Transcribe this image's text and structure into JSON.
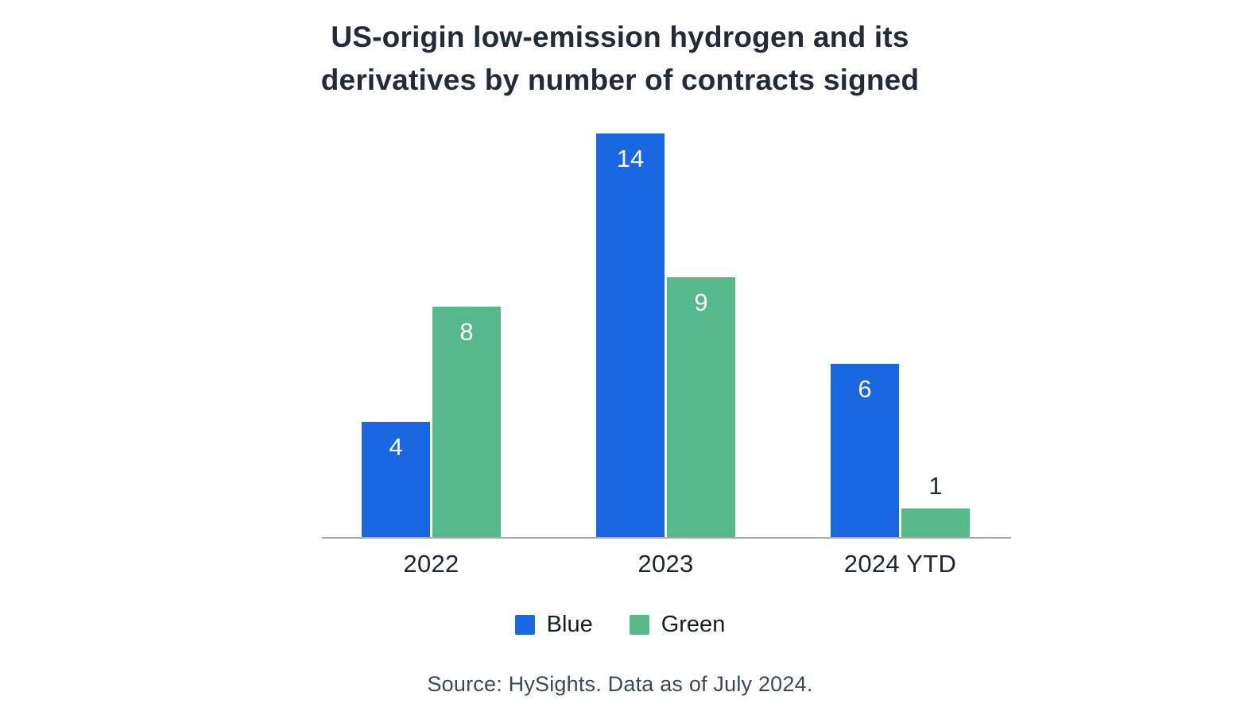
{
  "title": "US-origin low-emission hydrogen and its derivatives by number of contracts signed",
  "source": "Source: HySights. Data as of July 2024.",
  "colors": {
    "blue": "#1a67e2",
    "green": "#55b98c",
    "axis_line": "#ababab",
    "title_text": "#222b38",
    "value_label_light": "#ffffff",
    "value_label_dark": "#222b38"
  },
  "legend": [
    {
      "label": "Blue",
      "color_key": "blue"
    },
    {
      "label": "Green",
      "color_key": "green"
    }
  ],
  "chart_data": {
    "type": "bar",
    "title": "US-origin low-emission hydrogen and its derivatives by number of contracts signed",
    "categories": [
      "2022",
      "2023",
      "2024 YTD"
    ],
    "series": [
      {
        "name": "Blue",
        "color_key": "blue",
        "values": [
          4,
          14,
          6
        ]
      },
      {
        "name": "Green",
        "color_key": "green",
        "values": [
          8,
          9,
          1
        ]
      }
    ],
    "xlabel": "",
    "ylabel": "",
    "ylim": [
      0,
      14
    ],
    "grid": false,
    "y_axis_shown": false,
    "legend_position": "bottom",
    "value_labels": "white inside bar top; dark above bar when bar is too short",
    "annotation": "Source: HySights. Data as of July 2024."
  }
}
